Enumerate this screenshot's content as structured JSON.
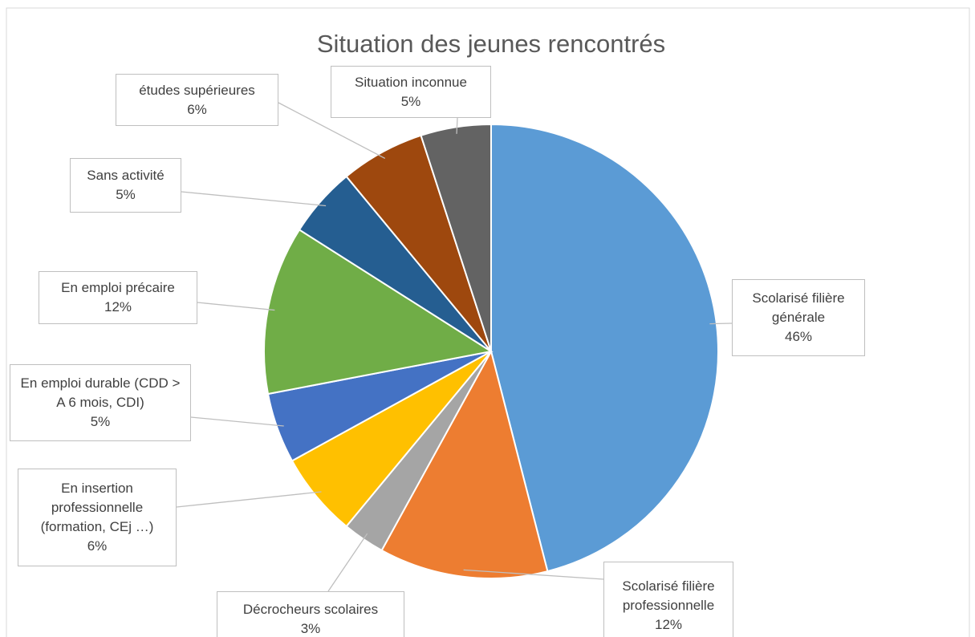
{
  "chart_data": {
    "type": "pie",
    "title": "Situation des jeunes rencontrés",
    "categories": [
      "Scolarisé filière générale",
      "Scolarisé filière professionnelle",
      "Décrocheurs scolaires",
      "En insertion professionnelle (formation, CEj …)",
      "En emploi durable (CDD > A 6 mois, CDI)",
      "En emploi précaire",
      "Sans activité",
      "études supérieures",
      "Situation inconnue"
    ],
    "values": [
      46,
      12,
      3,
      6,
      5,
      12,
      5,
      6,
      5
    ],
    "value_labels": [
      "46%",
      "12%",
      "3%",
      "6%",
      "5%",
      "12%",
      "5%",
      "6%",
      "5%"
    ],
    "colors": [
      "#5b9bd5",
      "#ed7d31",
      "#a5a5a5",
      "#ffc000",
      "#4472c4",
      "#70ad47",
      "#255e91",
      "#9e480e",
      "#636363"
    ]
  }
}
